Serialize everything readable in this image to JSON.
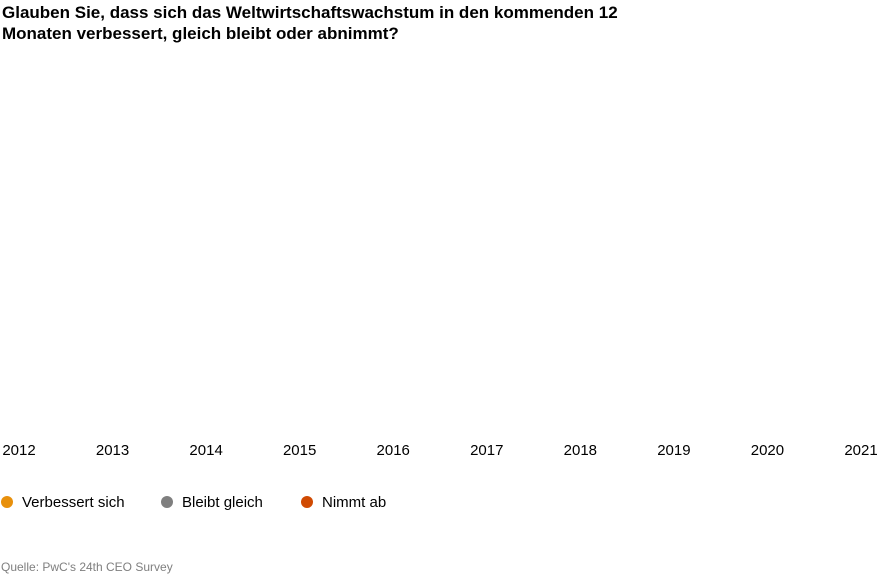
{
  "chart_data": {
    "type": "line",
    "title": "Glauben Sie, dass sich das Weltwirtschaftswachstum in den kommenden 12 Monaten verbessert, gleich bleibt oder abnimmt?",
    "categories": [
      "2012",
      "2013",
      "2014",
      "2015",
      "2016",
      "2017",
      "2018",
      "2019",
      "2020",
      "2021"
    ],
    "series": [
      {
        "name": "Verbessert sich",
        "color": "#e8900c",
        "values": [
          null,
          null,
          null,
          null,
          null,
          null,
          null,
          null,
          null,
          null
        ]
      },
      {
        "name": "Bleibt gleich",
        "color": "#7f7f7f",
        "values": [
          null,
          null,
          null,
          null,
          null,
          null,
          null,
          null,
          null,
          null
        ]
      },
      {
        "name": "Nimmt ab",
        "color": "#d04a02",
        "values": [
          null,
          null,
          null,
          null,
          null,
          null,
          null,
          null,
          null,
          null
        ]
      }
    ],
    "source": "Quelle: PwC's 24th CEO Survey"
  }
}
